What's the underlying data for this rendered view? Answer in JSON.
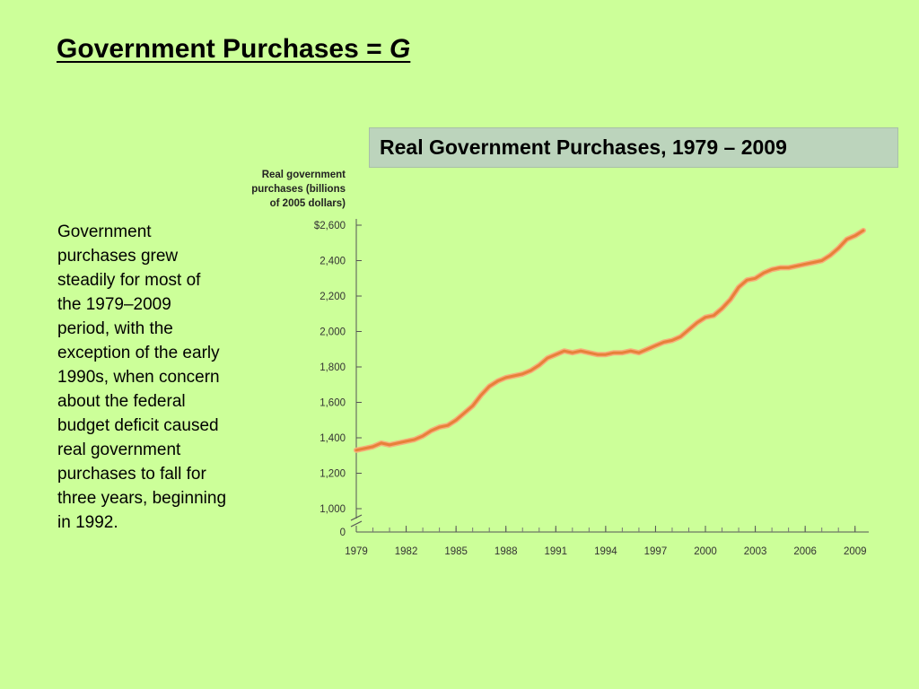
{
  "slide": {
    "title_main": "Government Purchases = ",
    "title_var": "G",
    "body": "Government purchases grew steadily for most of the 1979–2009 period, with the exception of the early 1990s, when concern about the federal budget deficit caused real government purchases to fall for three years, beginning in 1992."
  },
  "chart_data": {
    "type": "line",
    "title": "Real Government Purchases, 1979 – 2009",
    "ylabel_lines": [
      "Real government",
      "purchases (billions",
      "of 2005 dollars)"
    ],
    "ytick_labels": [
      "$2,600",
      "2,400",
      "2,200",
      "2,000",
      "1,800",
      "1,600",
      "1,400",
      "1,200",
      "1,000",
      "0"
    ],
    "ytick_values": [
      2600,
      2400,
      2200,
      2000,
      1800,
      1600,
      1400,
      1200,
      1000
    ],
    "xtick_labels": [
      "1979",
      "1982",
      "1985",
      "1988",
      "1991",
      "1994",
      "1997",
      "2000",
      "2003",
      "2006",
      "2009"
    ],
    "xtick_values": [
      1979,
      1982,
      1985,
      1988,
      1991,
      1994,
      1997,
      2000,
      2003,
      2006,
      2009
    ],
    "ylim": [
      1000,
      2600
    ],
    "xlim": [
      1979,
      2009.5
    ],
    "axis_break": true,
    "grid": false,
    "line_color": "#e8803a",
    "series": [
      {
        "x": [
          1979.0,
          1979.5,
          1980.0,
          1980.5,
          1981.0,
          1981.5,
          1982.0,
          1982.5,
          1983.0,
          1983.5,
          1984.0,
          1984.5,
          1985.0,
          1985.5,
          1986.0,
          1986.5,
          1987.0,
          1987.5,
          1988.0,
          1988.5,
          1989.0,
          1989.5,
          1990.0,
          1990.5,
          1991.0,
          1991.5,
          1992.0,
          1992.5,
          1993.0,
          1993.5,
          1994.0,
          1994.5,
          1995.0,
          1995.5,
          1996.0,
          1996.5,
          1997.0,
          1997.5,
          1998.0,
          1998.5,
          1999.0,
          1999.5,
          2000.0,
          2000.5,
          2001.0,
          2001.5,
          2002.0,
          2002.5,
          2003.0,
          2003.5,
          2004.0,
          2004.5,
          2005.0,
          2005.5,
          2006.0,
          2006.5,
          2007.0,
          2007.5,
          2008.0,
          2008.5,
          2009.0,
          2009.5
        ],
        "y": [
          1330,
          1340,
          1350,
          1370,
          1360,
          1370,
          1380,
          1390,
          1410,
          1440,
          1460,
          1470,
          1500,
          1540,
          1580,
          1640,
          1690,
          1720,
          1740,
          1750,
          1760,
          1780,
          1810,
          1850,
          1870,
          1890,
          1880,
          1890,
          1880,
          1870,
          1870,
          1880,
          1880,
          1890,
          1880,
          1900,
          1920,
          1940,
          1950,
          1970,
          2010,
          2050,
          2080,
          2090,
          2130,
          2180,
          2250,
          2290,
          2300,
          2330,
          2350,
          2360,
          2360,
          2370,
          2380,
          2390,
          2400,
          2430,
          2470,
          2520,
          2540,
          2570
        ]
      }
    ]
  }
}
